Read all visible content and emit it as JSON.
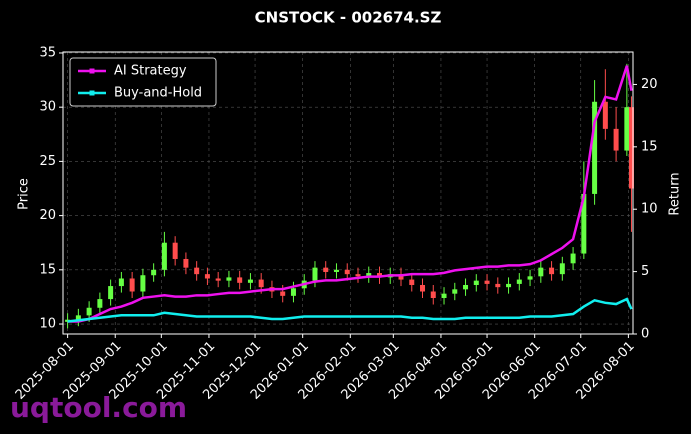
{
  "chart_data": {
    "type": "candlestick",
    "title": "CNSTOCK - 002674.SZ",
    "ylabel": "Price",
    "y2label": "Return",
    "watermark": "uqtool.com",
    "x": [
      "2025-08-01",
      "2025-08-08",
      "2025-08-15",
      "2025-08-22",
      "2025-08-29",
      "2025-09-05",
      "2025-09-12",
      "2025-09-19",
      "2025-09-26",
      "2025-10-03",
      "2025-10-10",
      "2025-10-17",
      "2025-10-24",
      "2025-10-31",
      "2025-11-07",
      "2025-11-14",
      "2025-11-21",
      "2025-11-28",
      "2025-12-05",
      "2025-12-12",
      "2025-12-19",
      "2025-12-26",
      "2026-01-02",
      "2026-01-09",
      "2026-01-16",
      "2026-01-23",
      "2026-01-30",
      "2026-02-06",
      "2026-02-13",
      "2026-02-20",
      "2026-02-27",
      "2026-03-06",
      "2026-03-13",
      "2026-03-20",
      "2026-03-27",
      "2026-04-03",
      "2026-04-10",
      "2026-04-17",
      "2026-04-24",
      "2026-05-01",
      "2026-05-08",
      "2026-05-15",
      "2026-05-22",
      "2026-05-29",
      "2026-06-05",
      "2026-06-12",
      "2026-06-19",
      "2026-06-26",
      "2026-07-03",
      "2026-07-10",
      "2026-07-17",
      "2026-07-24",
      "2026-07-31",
      "2026-08-03"
    ],
    "up_color": "#66ff44",
    "down_color": "#ff4d4d",
    "open": [
      10.2,
      10.4,
      10.8,
      11.5,
      12.3,
      13.5,
      14.2,
      13.0,
      14.5,
      15.0,
      17.5,
      16.0,
      15.2,
      14.6,
      14.2,
      14.0,
      14.3,
      13.8,
      14.1,
      13.4,
      13.0,
      12.6,
      13.3,
      14.0,
      15.2,
      14.8,
      15.0,
      14.6,
      14.4,
      14.7,
      14.3,
      14.6,
      14.1,
      13.6,
      13.0,
      12.4,
      12.8,
      13.2,
      13.6,
      14.0,
      13.7,
      13.4,
      13.7,
      14.1,
      14.4,
      15.2,
      14.6,
      15.6,
      16.5,
      22.0,
      30.5,
      28.0,
      26.0,
      30.0
    ],
    "high": [
      11.0,
      11.4,
      12.1,
      12.9,
      14.1,
      14.8,
      14.8,
      15.1,
      15.6,
      18.5,
      18.1,
      16.6,
      15.8,
      15.2,
      14.8,
      14.9,
      14.9,
      14.7,
      14.7,
      14.0,
      13.6,
      13.9,
      14.6,
      15.8,
      15.8,
      15.6,
      15.6,
      15.2,
      15.3,
      15.3,
      15.2,
      15.2,
      14.7,
      14.2,
      13.6,
      13.4,
      13.8,
      14.2,
      14.6,
      14.6,
      14.3,
      14.3,
      14.7,
      15.0,
      15.8,
      15.8,
      16.2,
      17.1,
      25.0,
      32.5,
      33.5,
      30.0,
      34.0,
      31.0
    ],
    "low": [
      9.6,
      9.8,
      10.2,
      10.9,
      11.7,
      12.9,
      12.4,
      12.4,
      13.9,
      14.4,
      15.4,
      14.6,
      14.0,
      13.6,
      13.4,
      13.4,
      13.2,
      13.2,
      12.8,
      12.4,
      12.0,
      12.0,
      12.7,
      13.4,
      14.2,
      14.2,
      14.0,
      13.8,
      13.8,
      13.7,
      13.7,
      13.5,
      13.0,
      12.4,
      11.8,
      11.8,
      12.2,
      12.6,
      13.0,
      13.1,
      12.8,
      12.8,
      13.1,
      13.5,
      13.8,
      14.0,
      14.0,
      15.0,
      16.0,
      21.0,
      27.0,
      25.0,
      25.5,
      18.5
    ],
    "close": [
      10.4,
      10.8,
      11.5,
      12.3,
      13.5,
      14.2,
      13.0,
      14.5,
      15.0,
      17.5,
      16.0,
      15.2,
      14.6,
      14.2,
      14.0,
      14.3,
      13.8,
      14.1,
      13.4,
      13.0,
      12.6,
      13.3,
      14.0,
      15.2,
      14.8,
      15.0,
      14.6,
      14.4,
      14.7,
      14.3,
      14.6,
      14.1,
      13.6,
      13.0,
      12.4,
      12.8,
      13.2,
      13.6,
      14.0,
      13.7,
      13.4,
      13.7,
      14.1,
      14.4,
      15.2,
      14.6,
      15.6,
      16.5,
      22.0,
      30.5,
      28.0,
      26.0,
      30.0,
      22.5
    ],
    "series": [
      {
        "name": "AI Strategy",
        "color": "#ee11ee",
        "axis": "y2",
        "values": [
          1.0,
          1.0,
          1.2,
          1.6,
          2.0,
          2.2,
          2.5,
          2.9,
          3.0,
          3.1,
          3.0,
          3.0,
          3.1,
          3.1,
          3.2,
          3.3,
          3.3,
          3.4,
          3.5,
          3.6,
          3.6,
          3.8,
          4.0,
          4.2,
          4.3,
          4.3,
          4.4,
          4.5,
          4.6,
          4.6,
          4.7,
          4.7,
          4.8,
          4.8,
          4.8,
          4.9,
          5.1,
          5.2,
          5.3,
          5.4,
          5.4,
          5.5,
          5.5,
          5.6,
          5.9,
          6.4,
          6.9,
          7.6,
          11.0,
          17.0,
          19.0,
          18.8,
          21.5,
          19.5
        ]
      },
      {
        "name": "Buy-and-Hold",
        "color": "#11eeee",
        "axis": "y2",
        "values": [
          1.0,
          1.1,
          1.2,
          1.3,
          1.4,
          1.5,
          1.5,
          1.5,
          1.5,
          1.7,
          1.6,
          1.5,
          1.4,
          1.4,
          1.4,
          1.4,
          1.4,
          1.4,
          1.3,
          1.2,
          1.2,
          1.3,
          1.4,
          1.4,
          1.4,
          1.4,
          1.4,
          1.4,
          1.4,
          1.4,
          1.4,
          1.4,
          1.3,
          1.3,
          1.2,
          1.2,
          1.2,
          1.3,
          1.3,
          1.3,
          1.3,
          1.3,
          1.3,
          1.4,
          1.4,
          1.4,
          1.5,
          1.6,
          2.2,
          2.7,
          2.5,
          2.4,
          2.8,
          2.0
        ]
      }
    ],
    "xlim": [
      "2025-07-29",
      "2026-08-04"
    ],
    "xticks": [
      "2025-08-01",
      "2025-09-01",
      "2025-10-01",
      "2025-11-01",
      "2025-12-01",
      "2026-01-01",
      "2026-02-01",
      "2026-03-01",
      "2026-04-01",
      "2026-05-01",
      "2026-06-01",
      "2026-07-01",
      "2026-08-01"
    ],
    "ylim": [
      9.08,
      35.09
    ],
    "yticks": [
      10,
      15,
      20,
      25,
      30,
      35
    ],
    "y2lim": [
      0,
      22.6
    ],
    "y2ticks": [
      0,
      5,
      10,
      15,
      20
    ],
    "grid": true,
    "legend": "upper left"
  }
}
